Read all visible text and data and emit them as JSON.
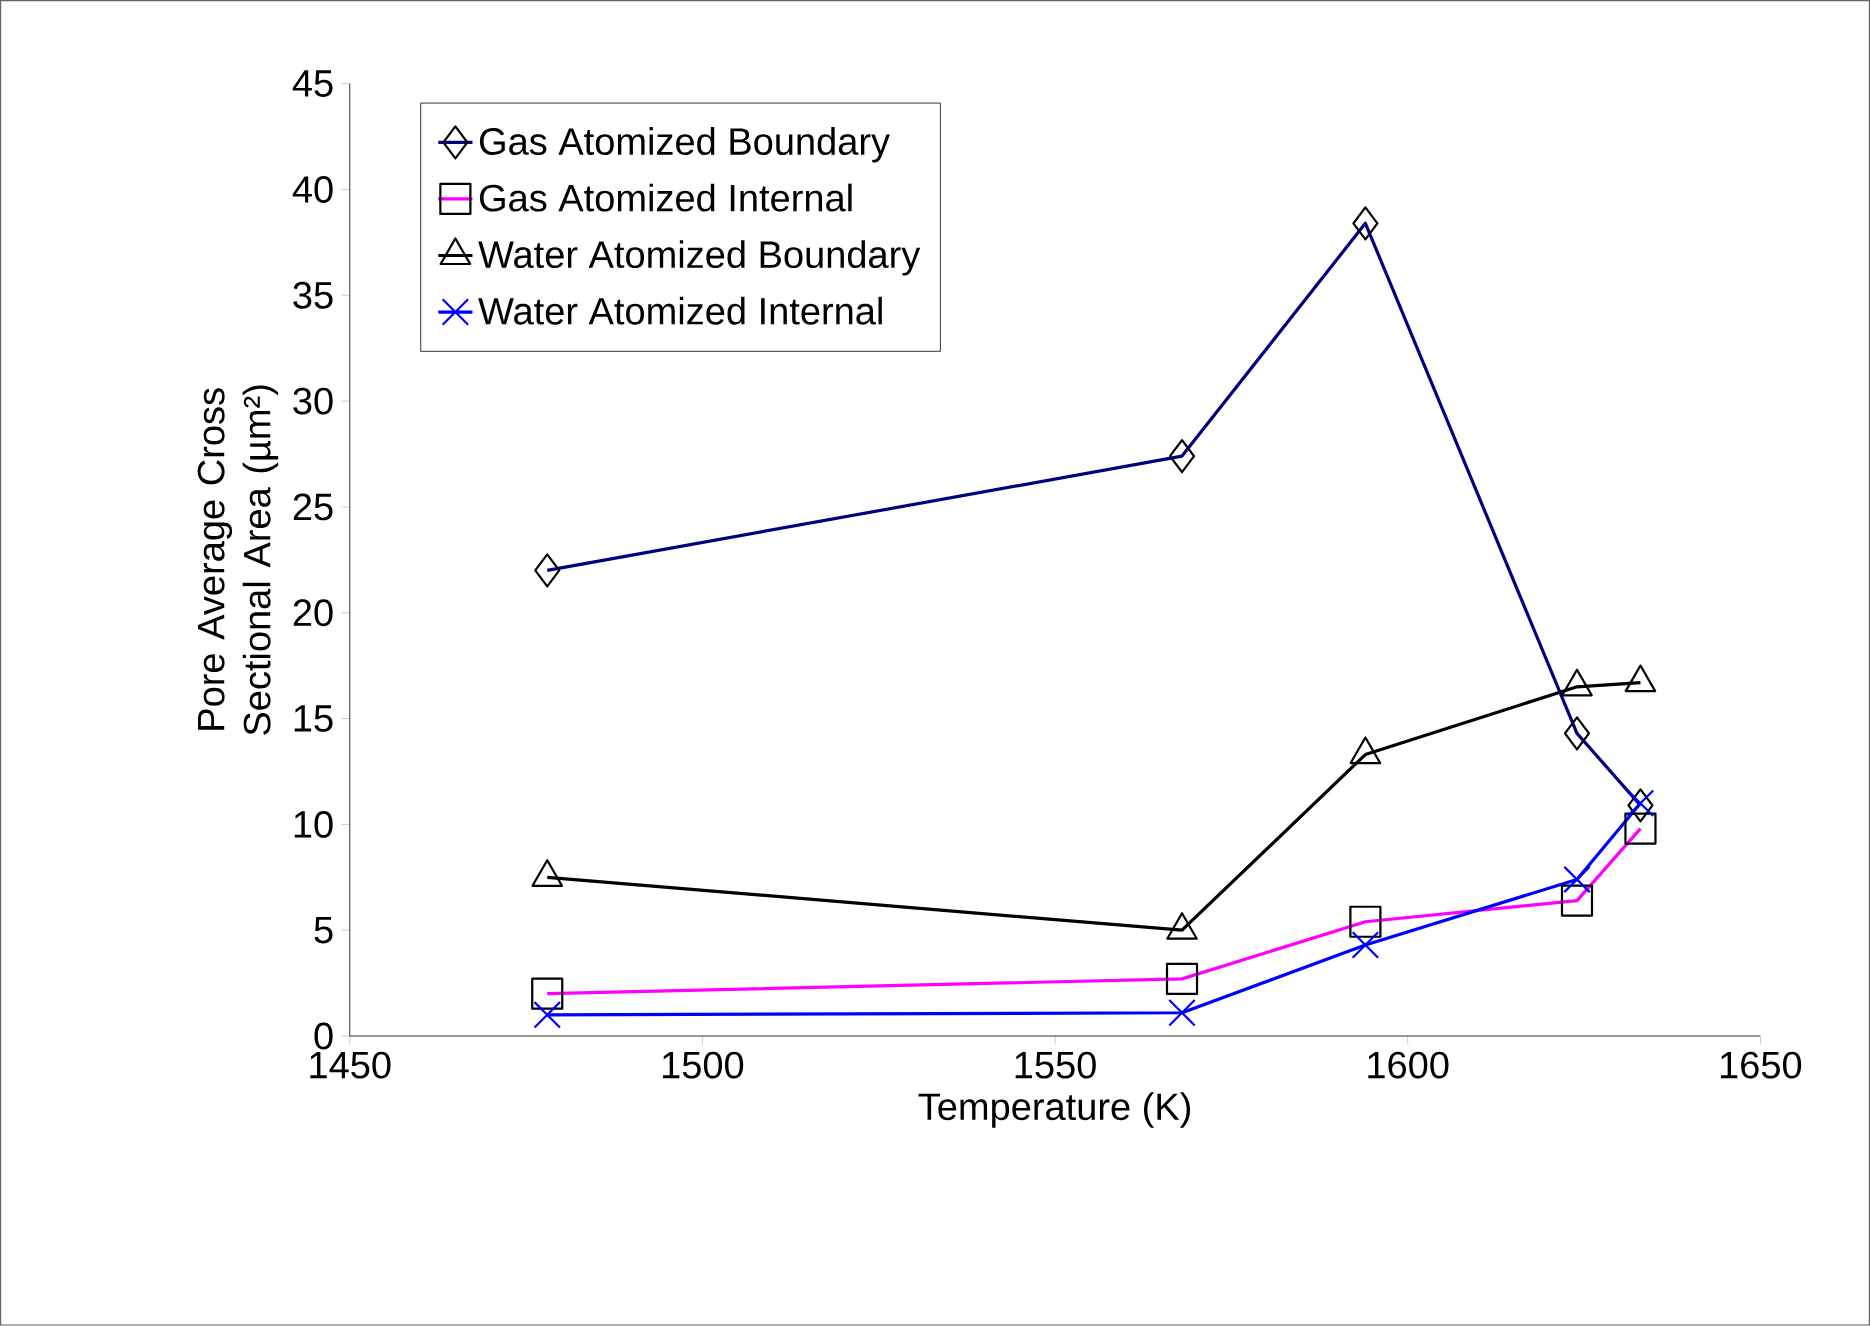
{
  "chart_data": {
    "type": "line",
    "xlabel": "Temperature (K)",
    "ylabel": "Pore Average Cross Sectional Area (µm²)",
    "x": [
      1478,
      1568,
      1594,
      1624,
      1633
    ],
    "xlim": [
      1450,
      1650
    ],
    "xticks": [
      1450,
      1500,
      1550,
      1600,
      1650
    ],
    "ylim": [
      0,
      45
    ],
    "yticks": [
      0,
      5,
      10,
      15,
      20,
      25,
      30,
      35,
      40,
      45
    ],
    "grid": false,
    "legend": "top left",
    "line_style": "solid",
    "series": [
      {
        "name": "Gas Atomized Boundary",
        "color": "#000080",
        "marker": "diamond",
        "values": [
          22.0,
          27.4,
          38.4,
          14.3,
          10.9
        ]
      },
      {
        "name": "Gas Atomized Internal",
        "color": "#ff00ff",
        "marker": "square",
        "values": [
          2.0,
          2.7,
          5.4,
          6.4,
          9.8
        ]
      },
      {
        "name": "Water Atomized Boundary",
        "color": "#000000",
        "marker": "triangle",
        "values": [
          7.5,
          5.0,
          13.3,
          16.5,
          16.7
        ]
      },
      {
        "name": "Water Atomized Internal",
        "color": "#0000ff",
        "marker": "cross",
        "values": [
          1.0,
          1.1,
          4.3,
          7.4,
          11.0
        ]
      }
    ]
  }
}
